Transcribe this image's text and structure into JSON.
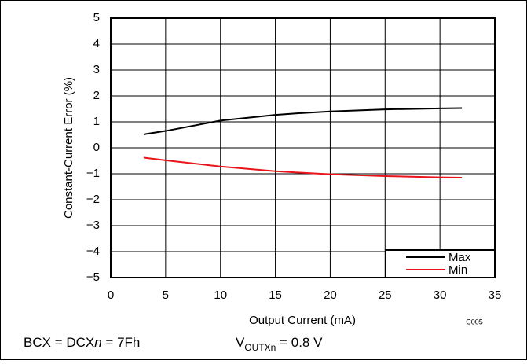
{
  "chart_data": {
    "type": "line",
    "xlabel": "Output Current (mA)",
    "ylabel": "Constant-Current Error (%)",
    "x": [
      3,
      5,
      10,
      15,
      17,
      20,
      25,
      30,
      32
    ],
    "series": [
      {
        "name": "Max",
        "color": "#000000",
        "values": [
          0.52,
          0.65,
          1.05,
          1.27,
          1.33,
          1.4,
          1.48,
          1.52,
          1.53
        ]
      },
      {
        "name": "Min",
        "color": "#e8141a",
        "values": [
          -0.38,
          -0.48,
          -0.72,
          -0.9,
          -0.95,
          -1.02,
          -1.09,
          -1.14,
          -1.15
        ]
      }
    ],
    "xlim": [
      0,
      35
    ],
    "xticks": [
      0,
      5,
      10,
      15,
      20,
      25,
      30,
      35
    ],
    "ylim": [
      -5,
      5
    ],
    "yticks": [
      {
        "value": -5,
        "label": "−5"
      },
      {
        "value": -4,
        "label": "−4"
      },
      {
        "value": -3,
        "label": "−3"
      },
      {
        "value": -2,
        "label": "−2"
      },
      {
        "value": -1,
        "label": "−1"
      },
      0,
      1,
      2,
      3,
      4,
      5
    ],
    "grid": true,
    "legend": "lower right",
    "figure_id": "C005",
    "footer_left": [
      "BCX = DCX",
      "n",
      " = 7Fh"
    ],
    "footer_right": [
      "V",
      "OUTXn",
      " = 0.8 V"
    ]
  }
}
